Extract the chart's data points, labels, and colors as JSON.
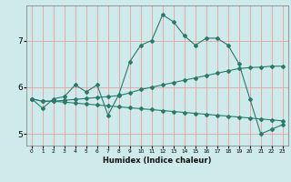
{
  "xlabel": "Humidex (Indice chaleur)",
  "bg_color": "#ceeaea",
  "grid_color": "#e8a0a0",
  "line_color": "#2a7a6a",
  "xlim": [
    -0.5,
    23.5
  ],
  "ylim": [
    4.75,
    7.75
  ],
  "yticks": [
    5,
    6,
    7
  ],
  "xticks": [
    0,
    1,
    2,
    3,
    4,
    5,
    6,
    7,
    8,
    9,
    10,
    11,
    12,
    13,
    14,
    15,
    16,
    17,
    18,
    19,
    20,
    21,
    22,
    23
  ],
  "series": [
    [
      5.75,
      5.55,
      5.75,
      5.8,
      6.05,
      5.9,
      6.05,
      5.4,
      5.85,
      6.55,
      6.9,
      7.0,
      7.55,
      7.4,
      7.1,
      6.9,
      7.05,
      7.05,
      6.9,
      6.5,
      5.75,
      5.0,
      5.1,
      5.2
    ],
    [
      5.75,
      5.7,
      5.7,
      5.72,
      5.74,
      5.76,
      5.78,
      5.8,
      5.82,
      5.88,
      5.95,
      6.0,
      6.05,
      6.1,
      6.15,
      6.2,
      6.25,
      6.3,
      6.35,
      6.4,
      6.42,
      6.43,
      6.45,
      6.45
    ],
    [
      5.75,
      5.7,
      5.7,
      5.68,
      5.66,
      5.64,
      5.62,
      5.6,
      5.58,
      5.56,
      5.54,
      5.52,
      5.5,
      5.48,
      5.46,
      5.44,
      5.42,
      5.4,
      5.38,
      5.36,
      5.34,
      5.32,
      5.3,
      5.28
    ]
  ]
}
